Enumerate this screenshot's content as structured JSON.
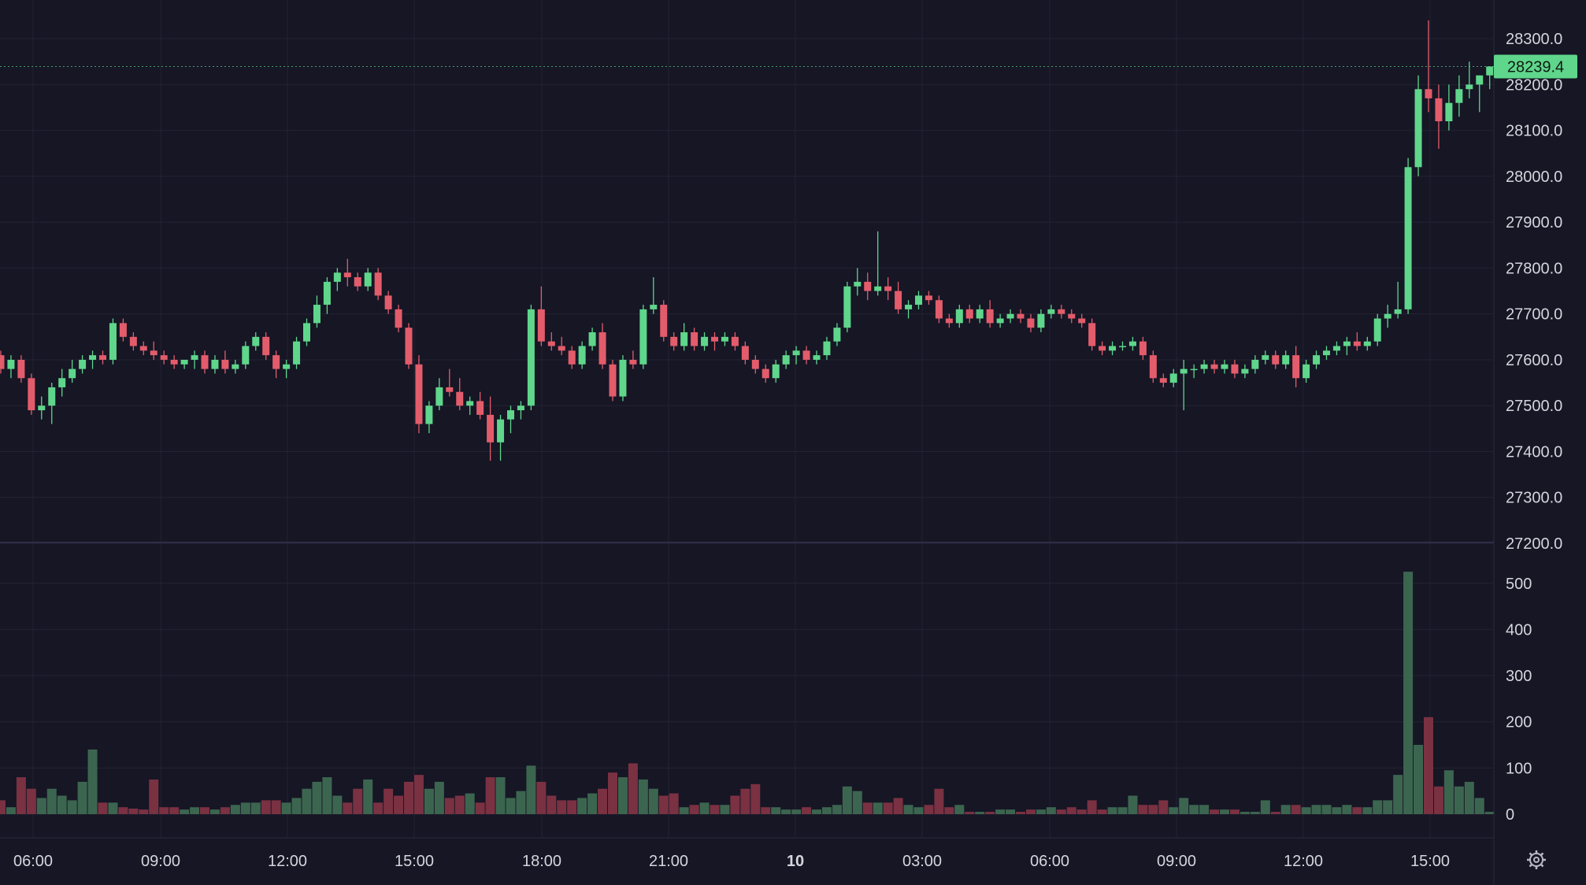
{
  "chart_data": {
    "type": "candlestick",
    "price_axis": {
      "ticks": [
        27200,
        27300,
        27400,
        27500,
        27600,
        27700,
        27800,
        27900,
        28000,
        28100,
        28200,
        28300
      ],
      "ylim": [
        27180,
        28330
      ]
    },
    "volume_axis": {
      "ticks": [
        0,
        100,
        200,
        300,
        400,
        500
      ],
      "ylim": [
        0,
        520
      ]
    },
    "time_labels": [
      "06:00",
      "09:00",
      "12:00",
      "15:00",
      "18:00",
      "21:00",
      "10",
      "03:00",
      "06:00",
      "09:00",
      "12:00",
      "15:00"
    ],
    "bold_time_labels": [
      "10"
    ],
    "last_price": {
      "value": 28239.4,
      "label": "28239.4"
    },
    "colors": {
      "background": "#161625",
      "up": "#5fd68b",
      "down": "#e35c6b",
      "volume_up": "#3c6550",
      "volume_down": "#7a3142",
      "grid": "#232333",
      "text": "#d5d5dd",
      "price_tag": "#5fd68b"
    },
    "candles": [
      [
        27610,
        27620,
        27570,
        27580,
        30
      ],
      [
        27580,
        27610,
        27560,
        27600,
        15
      ],
      [
        27600,
        27610,
        27550,
        27560,
        80
      ],
      [
        27560,
        27570,
        27480,
        27490,
        55
      ],
      [
        27490,
        27520,
        27470,
        27500,
        35
      ],
      [
        27500,
        27550,
        27460,
        27540,
        55
      ],
      [
        27540,
        27580,
        27520,
        27560,
        40
      ],
      [
        27560,
        27600,
        27550,
        27580,
        30
      ],
      [
        27580,
        27610,
        27570,
        27600,
        70
      ],
      [
        27600,
        27620,
        27580,
        27610,
        140
      ],
      [
        27610,
        27620,
        27590,
        27600,
        25
      ],
      [
        27600,
        27690,
        27590,
        27680,
        25
      ],
      [
        27680,
        27690,
        27640,
        27650,
        15
      ],
      [
        27650,
        27660,
        27620,
        27630,
        12
      ],
      [
        27630,
        27640,
        27610,
        27620,
        10
      ],
      [
        27620,
        27640,
        27600,
        27610,
        75
      ],
      [
        27610,
        27620,
        27590,
        27600,
        15
      ],
      [
        27600,
        27610,
        27580,
        27590,
        15
      ],
      [
        27590,
        27600,
        27580,
        27600,
        10
      ],
      [
        27600,
        27620,
        27580,
        27610,
        15
      ],
      [
        27610,
        27620,
        27570,
        27580,
        15
      ],
      [
        27580,
        27610,
        27570,
        27600,
        10
      ],
      [
        27600,
        27620,
        27570,
        27580,
        15
      ],
      [
        27580,
        27600,
        27570,
        27590,
        20
      ],
      [
        27590,
        27640,
        27580,
        27630,
        25
      ],
      [
        27630,
        27660,
        27620,
        27650,
        25
      ],
      [
        27650,
        27660,
        27600,
        27610,
        30
      ],
      [
        27610,
        27620,
        27560,
        27580,
        30
      ],
      [
        27580,
        27600,
        27560,
        27590,
        25
      ],
      [
        27590,
        27650,
        27580,
        27640,
        35
      ],
      [
        27640,
        27690,
        27630,
        27680,
        55
      ],
      [
        27680,
        27740,
        27670,
        27720,
        70
      ],
      [
        27720,
        27780,
        27700,
        27770,
        80
      ],
      [
        27770,
        27800,
        27750,
        27790,
        40
      ],
      [
        27790,
        27820,
        27760,
        27780,
        25
      ],
      [
        27780,
        27790,
        27750,
        27760,
        55
      ],
      [
        27760,
        27800,
        27750,
        27790,
        75
      ],
      [
        27790,
        27800,
        27730,
        27740,
        25
      ],
      [
        27740,
        27750,
        27700,
        27710,
        55
      ],
      [
        27710,
        27720,
        27660,
        27670,
        40
      ],
      [
        27670,
        27680,
        27580,
        27590,
        70
      ],
      [
        27590,
        27610,
        27440,
        27460,
        85
      ],
      [
        27460,
        27510,
        27440,
        27500,
        55
      ],
      [
        27500,
        27560,
        27490,
        27540,
        70
      ],
      [
        27540,
        27580,
        27520,
        27530,
        35
      ],
      [
        27530,
        27560,
        27490,
        27500,
        40
      ],
      [
        27500,
        27520,
        27480,
        27510,
        45
      ],
      [
        27510,
        27530,
        27470,
        27480,
        25
      ],
      [
        27480,
        27520,
        27380,
        27420,
        80
      ],
      [
        27420,
        27480,
        27380,
        27470,
        80
      ],
      [
        27470,
        27500,
        27440,
        27490,
        35
      ],
      [
        27490,
        27510,
        27470,
        27500,
        50
      ],
      [
        27500,
        27720,
        27490,
        27710,
        105
      ],
      [
        27710,
        27760,
        27630,
        27640,
        70
      ],
      [
        27640,
        27660,
        27620,
        27630,
        40
      ],
      [
        27630,
        27650,
        27610,
        27620,
        30
      ],
      [
        27620,
        27630,
        27580,
        27590,
        30
      ],
      [
        27590,
        27640,
        27580,
        27630,
        35
      ],
      [
        27630,
        27670,
        27620,
        27660,
        45
      ],
      [
        27660,
        27680,
        27580,
        27590,
        55
      ],
      [
        27590,
        27600,
        27510,
        27520,
        90
      ],
      [
        27520,
        27610,
        27510,
        27600,
        80
      ],
      [
        27600,
        27620,
        27580,
        27590,
        110
      ],
      [
        27590,
        27720,
        27580,
        27710,
        75
      ],
      [
        27710,
        27780,
        27700,
        27720,
        55
      ],
      [
        27720,
        27730,
        27640,
        27650,
        40
      ],
      [
        27650,
        27660,
        27620,
        27630,
        45
      ],
      [
        27630,
        27680,
        27620,
        27660,
        15
      ],
      [
        27660,
        27670,
        27620,
        27630,
        20
      ],
      [
        27630,
        27660,
        27620,
        27650,
        25
      ],
      [
        27650,
        27660,
        27620,
        27640,
        20
      ],
      [
        27640,
        27660,
        27630,
        27650,
        20
      ],
      [
        27650,
        27660,
        27620,
        27630,
        40
      ],
      [
        27630,
        27640,
        27590,
        27600,
        55
      ],
      [
        27600,
        27610,
        27570,
        27580,
        65
      ],
      [
        27580,
        27590,
        27550,
        27560,
        15
      ],
      [
        27560,
        27600,
        27550,
        27590,
        15
      ],
      [
        27590,
        27620,
        27580,
        27610,
        10
      ],
      [
        27610,
        27630,
        27590,
        27620,
        10
      ],
      [
        27620,
        27630,
        27590,
        27600,
        15
      ],
      [
        27600,
        27620,
        27590,
        27610,
        10
      ],
      [
        27610,
        27650,
        27600,
        27640,
        15
      ],
      [
        27640,
        27680,
        27630,
        27670,
        20
      ],
      [
        27670,
        27770,
        27660,
        27760,
        60
      ],
      [
        27760,
        27800,
        27740,
        27770,
        50
      ],
      [
        27770,
        27790,
        27730,
        27750,
        25
      ],
      [
        27750,
        27880,
        27740,
        27760,
        25
      ],
      [
        27760,
        27780,
        27730,
        27750,
        25
      ],
      [
        27750,
        27770,
        27700,
        27710,
        35
      ],
      [
        27710,
        27730,
        27690,
        27720,
        20
      ],
      [
        27720,
        27750,
        27710,
        27740,
        15
      ],
      [
        27740,
        27750,
        27720,
        27730,
        20
      ],
      [
        27730,
        27740,
        27680,
        27690,
        55
      ],
      [
        27690,
        27700,
        27670,
        27680,
        15
      ],
      [
        27680,
        27720,
        27670,
        27710,
        20
      ],
      [
        27710,
        27720,
        27680,
        27690,
        5
      ],
      [
        27690,
        27720,
        27680,
        27710,
        5
      ],
      [
        27710,
        27730,
        27670,
        27680,
        5
      ],
      [
        27680,
        27700,
        27670,
        27690,
        10
      ],
      [
        27690,
        27710,
        27680,
        27700,
        10
      ],
      [
        27700,
        27710,
        27680,
        27690,
        5
      ],
      [
        27690,
        27700,
        27660,
        27670,
        10
      ],
      [
        27670,
        27710,
        27660,
        27700,
        10
      ],
      [
        27700,
        27720,
        27690,
        27710,
        15
      ],
      [
        27710,
        27720,
        27690,
        27700,
        10
      ],
      [
        27700,
        27710,
        27680,
        27690,
        15
      ],
      [
        27690,
        27700,
        27670,
        27680,
        10
      ],
      [
        27680,
        27690,
        27620,
        27630,
        30
      ],
      [
        27630,
        27640,
        27610,
        27620,
        10
      ],
      [
        27620,
        27640,
        27610,
        27630,
        15
      ],
      [
        27630,
        27640,
        27620,
        27630,
        15
      ],
      [
        27630,
        27650,
        27620,
        27640,
        40
      ],
      [
        27640,
        27650,
        27600,
        27610,
        20
      ],
      [
        27610,
        27620,
        27550,
        27560,
        20
      ],
      [
        27560,
        27570,
        27540,
        27550,
        30
      ],
      [
        27550,
        27580,
        27540,
        27570,
        15
      ],
      [
        27570,
        27600,
        27490,
        27580,
        35
      ],
      [
        27580,
        27590,
        27560,
        27580,
        20
      ],
      [
        27580,
        27600,
        27570,
        27590,
        20
      ],
      [
        27590,
        27600,
        27570,
        27580,
        10
      ],
      [
        27580,
        27600,
        27570,
        27590,
        10
      ],
      [
        27590,
        27600,
        27560,
        27570,
        10
      ],
      [
        27570,
        27590,
        27560,
        27580,
        5
      ],
      [
        27580,
        27610,
        27570,
        27600,
        5
      ],
      [
        27600,
        27620,
        27590,
        27610,
        30
      ],
      [
        27610,
        27620,
        27580,
        27590,
        5
      ],
      [
        27590,
        27620,
        27580,
        27610,
        20
      ],
      [
        27610,
        27630,
        27540,
        27560,
        20
      ],
      [
        27560,
        27600,
        27550,
        27590,
        15
      ],
      [
        27590,
        27620,
        27580,
        27610,
        20
      ],
      [
        27610,
        27630,
        27600,
        27620,
        20
      ],
      [
        27620,
        27640,
        27610,
        27630,
        15
      ],
      [
        27630,
        27650,
        27610,
        27640,
        20
      ],
      [
        27640,
        27660,
        27620,
        27630,
        15
      ],
      [
        27630,
        27650,
        27620,
        27640,
        15
      ],
      [
        27640,
        27700,
        27630,
        27690,
        30
      ],
      [
        27690,
        27720,
        27670,
        27700,
        30
      ],
      [
        27700,
        27770,
        27690,
        27710,
        85
      ],
      [
        27710,
        28040,
        27700,
        28020,
        525
      ],
      [
        28020,
        28220,
        28000,
        28190,
        150
      ],
      [
        28190,
        28340,
        28140,
        28170,
        210
      ],
      [
        28170,
        28200,
        28060,
        28120,
        60
      ],
      [
        28120,
        28200,
        28100,
        28160,
        95
      ],
      [
        28160,
        28220,
        28130,
        28190,
        60
      ],
      [
        28190,
        28250,
        28170,
        28200,
        70
      ],
      [
        28200,
        28220,
        28140,
        28220,
        35
      ],
      [
        28220,
        28240,
        28190,
        28239.4,
        5
      ]
    ]
  }
}
